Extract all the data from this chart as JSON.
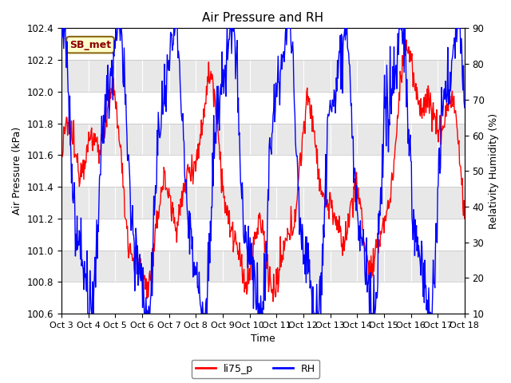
{
  "title": "Air Pressure and RH",
  "xlabel": "Time",
  "ylabel_left": "Air Pressure (kPa)",
  "ylabel_right": "Relativity Humidity (%)",
  "left_ylim": [
    100.6,
    102.4
  ],
  "right_ylim": [
    10,
    90
  ],
  "left_yticks": [
    100.6,
    100.8,
    101.0,
    101.2,
    101.4,
    101.6,
    101.8,
    102.0,
    102.2,
    102.4
  ],
  "right_yticks": [
    10,
    20,
    30,
    40,
    50,
    60,
    70,
    80,
    90
  ],
  "xtick_labels": [
    "Oct 3",
    "Oct 4",
    "Oct 5",
    "Oct 6",
    "Oct 7",
    "Oct 8",
    "Oct 9",
    "Oct 10",
    "Oct 11",
    "Oct 12",
    "Oct 13",
    "Oct 14",
    "Oct 15",
    "Oct 16",
    "Oct 17",
    "Oct 18"
  ],
  "annotation_text": "SB_met",
  "annotation_box_facecolor": "#FFFFCC",
  "annotation_box_edgecolor": "#8B6914",
  "legend_labels": [
    "li75_p",
    "RH"
  ],
  "line_colors": [
    "red",
    "blue"
  ],
  "band_colors_even": "#FFFFFF",
  "band_colors_odd": "#E8E8E8",
  "bg_color": "#FFFFFF",
  "title_fontsize": 11,
  "axis_fontsize": 9,
  "tick_fontsize": 8.5
}
